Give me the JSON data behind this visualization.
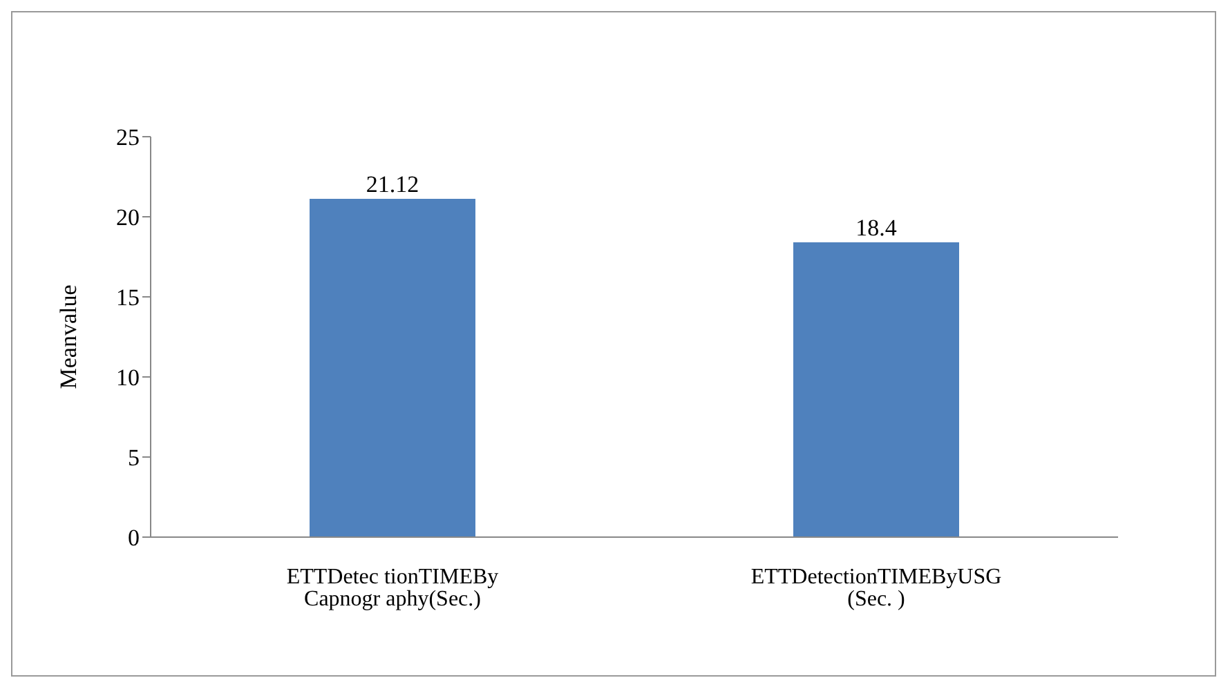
{
  "chart_data": {
    "type": "bar",
    "ylabel": "Meanvalue",
    "categories": [
      "ETTDetec tionTIMEBy Capnogr aphy(Sec.)",
      "ETTDetectionTIMEByUSG (Sec. )"
    ],
    "values": [
      21.12,
      18.4
    ],
    "color": "#4f81bd",
    "ylim": [
      0,
      25
    ],
    "yticks": [
      0,
      5,
      10,
      15,
      20,
      25
    ],
    "grid": false,
    "legend": false,
    "data_labels": true
  }
}
